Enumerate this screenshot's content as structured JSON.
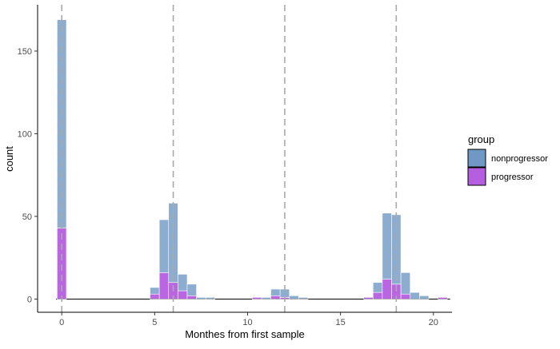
{
  "chart_data": {
    "type": "bar",
    "subtype": "stacked-histogram",
    "xlabel": "Monthes from first sample",
    "ylabel": "count",
    "xlim": [
      -1.3,
      21
    ],
    "ylim": [
      -8,
      178
    ],
    "x_ticks": [
      0,
      5,
      10,
      15,
      20
    ],
    "y_ticks": [
      0,
      50,
      100,
      150
    ],
    "x_tick_labels": [
      "0",
      "5",
      "10",
      "15",
      "20"
    ],
    "y_tick_labels": [
      "0",
      "50",
      "100",
      "150"
    ],
    "bin_width": 0.5,
    "vlines": [
      0,
      6,
      12,
      18
    ],
    "grid": false,
    "legend_position": "right",
    "legend": {
      "title": "group",
      "items": [
        {
          "name": "nonprogressor",
          "color": "#6f98c4"
        },
        {
          "name": "progressor",
          "color": "#b65ee0"
        }
      ]
    },
    "bins": [
      {
        "x": 0.0,
        "nonprogressor": 126,
        "progressor": 43
      },
      {
        "x": 5.0,
        "nonprogressor": 4,
        "progressor": 3
      },
      {
        "x": 5.5,
        "nonprogressor": 32,
        "progressor": 16
      },
      {
        "x": 6.0,
        "nonprogressor": 48,
        "progressor": 10
      },
      {
        "x": 6.5,
        "nonprogressor": 10,
        "progressor": 5
      },
      {
        "x": 7.0,
        "nonprogressor": 7,
        "progressor": 2
      },
      {
        "x": 7.5,
        "nonprogressor": 1,
        "progressor": 0
      },
      {
        "x": 8.0,
        "nonprogressor": 1,
        "progressor": 0
      },
      {
        "x": 10.5,
        "nonprogressor": 0,
        "progressor": 1
      },
      {
        "x": 11.0,
        "nonprogressor": 1,
        "progressor": 0
      },
      {
        "x": 11.5,
        "nonprogressor": 4,
        "progressor": 2
      },
      {
        "x": 12.0,
        "nonprogressor": 5,
        "progressor": 1
      },
      {
        "x": 12.5,
        "nonprogressor": 2,
        "progressor": 0
      },
      {
        "x": 13.0,
        "nonprogressor": 1,
        "progressor": 0
      },
      {
        "x": 16.5,
        "nonprogressor": 0,
        "progressor": 1
      },
      {
        "x": 17.0,
        "nonprogressor": 6,
        "progressor": 4
      },
      {
        "x": 17.5,
        "nonprogressor": 40,
        "progressor": 12
      },
      {
        "x": 18.0,
        "nonprogressor": 42,
        "progressor": 9
      },
      {
        "x": 18.5,
        "nonprogressor": 13,
        "progressor": 3
      },
      {
        "x": 19.0,
        "nonprogressor": 4,
        "progressor": 0
      },
      {
        "x": 19.5,
        "nonprogressor": 2,
        "progressor": 0
      },
      {
        "x": 20.5,
        "nonprogressor": 0,
        "progressor": 1
      }
    ]
  }
}
